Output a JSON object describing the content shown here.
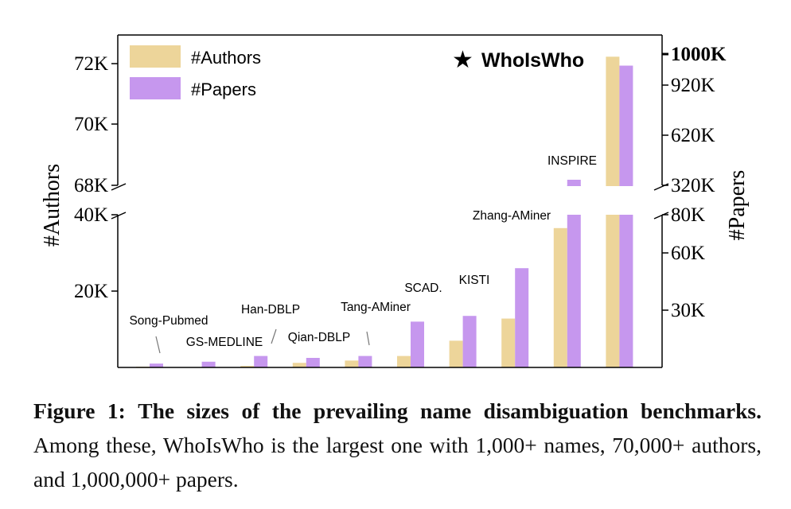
{
  "chart_data": {
    "type": "bar",
    "categories": [
      "Song-Pubmed",
      "GS-MEDLINE",
      "Han-DBLP",
      "Qian-DBLP",
      "Tang-AMiner",
      "SCAD.",
      "KISTI",
      "Zhang-AMiner",
      "INSPIRE",
      "WhoIsWho"
    ],
    "series": [
      {
        "name": "#Authors",
        "values": [
          200,
          0,
          400,
          1200,
          1800,
          3000,
          7000,
          12800,
          36500,
          72200
        ]
      },
      {
        "name": "#Papers",
        "values": [
          2000,
          3000,
          6000,
          5000,
          6000,
          24000,
          27000,
          52000,
          300000,
          1040000
        ]
      }
    ],
    "ylabel": "#Authors",
    "y2label": "#Papers",
    "y_ticks": [
      "20K",
      "40K",
      "68K",
      "70K",
      "72K"
    ],
    "y2_ticks": [
      "30K",
      "60K",
      "80K",
      "320K",
      "620K",
      "920K",
      "1000K"
    ],
    "highlight": "WhoIsWho",
    "axis_break": true,
    "legend": "top-left",
    "colors": {
      "authors": "#edd59a",
      "papers": "#c697ee",
      "axis": "#000000"
    }
  },
  "caption": {
    "figure_label": "Figure 1:",
    "bold_text": "The sizes of the prevailing name disambiguation benchmarks.",
    "text": "Among these, WhoIsWho is the largest one with 1,000+ names, 70,000+ authors, and 1,000,000+ papers."
  }
}
